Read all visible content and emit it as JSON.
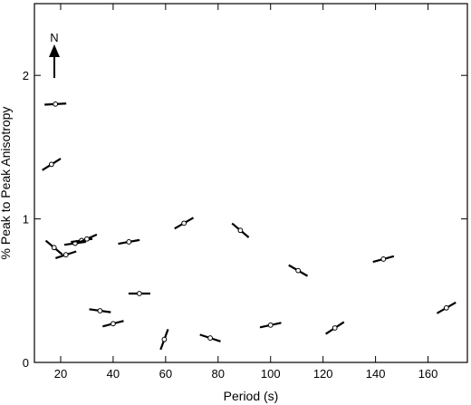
{
  "chart_data": {
    "type": "scatter",
    "title": "",
    "xlabel": "Period (s)",
    "ylabel": "% Peak to Peak Anisotropy",
    "xlim": [
      10,
      175
    ],
    "ylim": [
      0,
      2.5
    ],
    "xticks": [
      20,
      40,
      60,
      80,
      100,
      120,
      140,
      160
    ],
    "yticks": [
      0,
      1,
      2
    ],
    "grid": false,
    "north_arrow_label": "N",
    "marker": "open-circle with fast-axis direction bar",
    "points": [
      {
        "x": 18,
        "y": 1.8,
        "azimuth_deg": 87
      },
      {
        "x": 16.5,
        "y": 1.38,
        "azimuth_deg": 58
      },
      {
        "x": 17.5,
        "y": 0.8,
        "azimuth_deg": -50
      },
      {
        "x": 22,
        "y": 0.75,
        "azimuth_deg": 72
      },
      {
        "x": 25.5,
        "y": 0.83,
        "azimuth_deg": 82
      },
      {
        "x": 28,
        "y": 0.85,
        "azimuth_deg": 82
      },
      {
        "x": 30,
        "y": 0.86,
        "azimuth_deg": 66
      },
      {
        "x": 35,
        "y": 0.36,
        "azimuth_deg": 98
      },
      {
        "x": 40,
        "y": 0.27,
        "azimuth_deg": 75
      },
      {
        "x": 46,
        "y": 0.84,
        "azimuth_deg": 80
      },
      {
        "x": 50,
        "y": 0.48,
        "azimuth_deg": 90
      },
      {
        "x": 59.5,
        "y": 0.16,
        "azimuth_deg": 20
      },
      {
        "x": 67,
        "y": 0.97,
        "azimuth_deg": 60
      },
      {
        "x": 77,
        "y": 0.17,
        "azimuth_deg": 108
      },
      {
        "x": 88.5,
        "y": 0.92,
        "azimuth_deg": -50
      },
      {
        "x": 100,
        "y": 0.26,
        "azimuth_deg": 78
      },
      {
        "x": 110.5,
        "y": 0.64,
        "azimuth_deg": 120
      },
      {
        "x": 124.5,
        "y": 0.24,
        "azimuth_deg": 57
      },
      {
        "x": 143,
        "y": 0.72,
        "azimuth_deg": 75
      },
      {
        "x": 167,
        "y": 0.38,
        "azimuth_deg": 60
      }
    ]
  }
}
